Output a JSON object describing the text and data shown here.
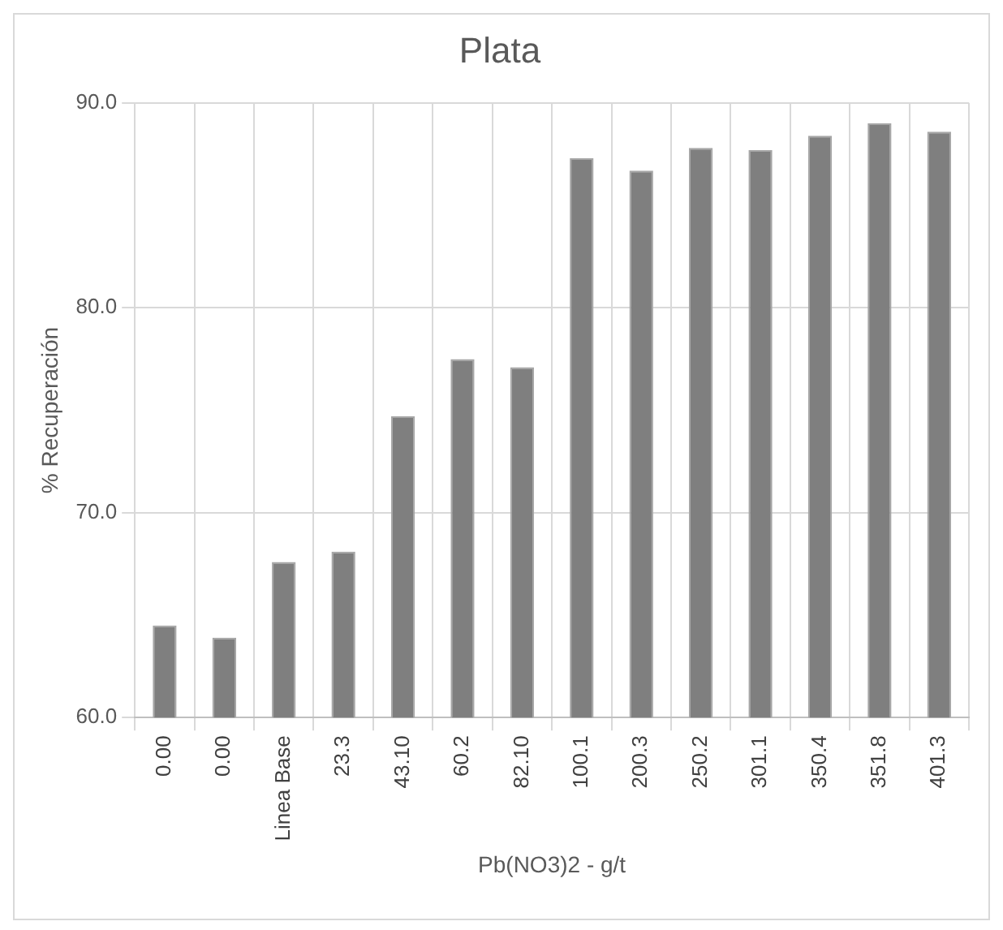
{
  "chart_data": {
    "type": "bar",
    "title": "Plata",
    "xlabel": "Pb(NO3)2 - g/t",
    "ylabel": "% Recuperación",
    "categories": [
      "0.00",
      "0.00",
      "Linea Base",
      "23.3",
      "43.10",
      "60.2",
      "82.10",
      "100.1",
      "200.3",
      "250.2",
      "301.1",
      "350.4",
      "351.8",
      "401.3"
    ],
    "values": [
      64.5,
      63.9,
      67.6,
      68.1,
      74.7,
      77.5,
      77.1,
      87.3,
      86.7,
      87.8,
      87.7,
      88.4,
      89.0,
      88.6
    ],
    "color": "#7f7f7f",
    "ylim": [
      60,
      90
    ],
    "yticks": [
      {
        "value": 60,
        "label": "60.0"
      },
      {
        "value": 70,
        "label": "70.0"
      },
      {
        "value": 80,
        "label": "80.0"
      },
      {
        "value": 90,
        "label": "90.0"
      }
    ],
    "grid": true
  }
}
